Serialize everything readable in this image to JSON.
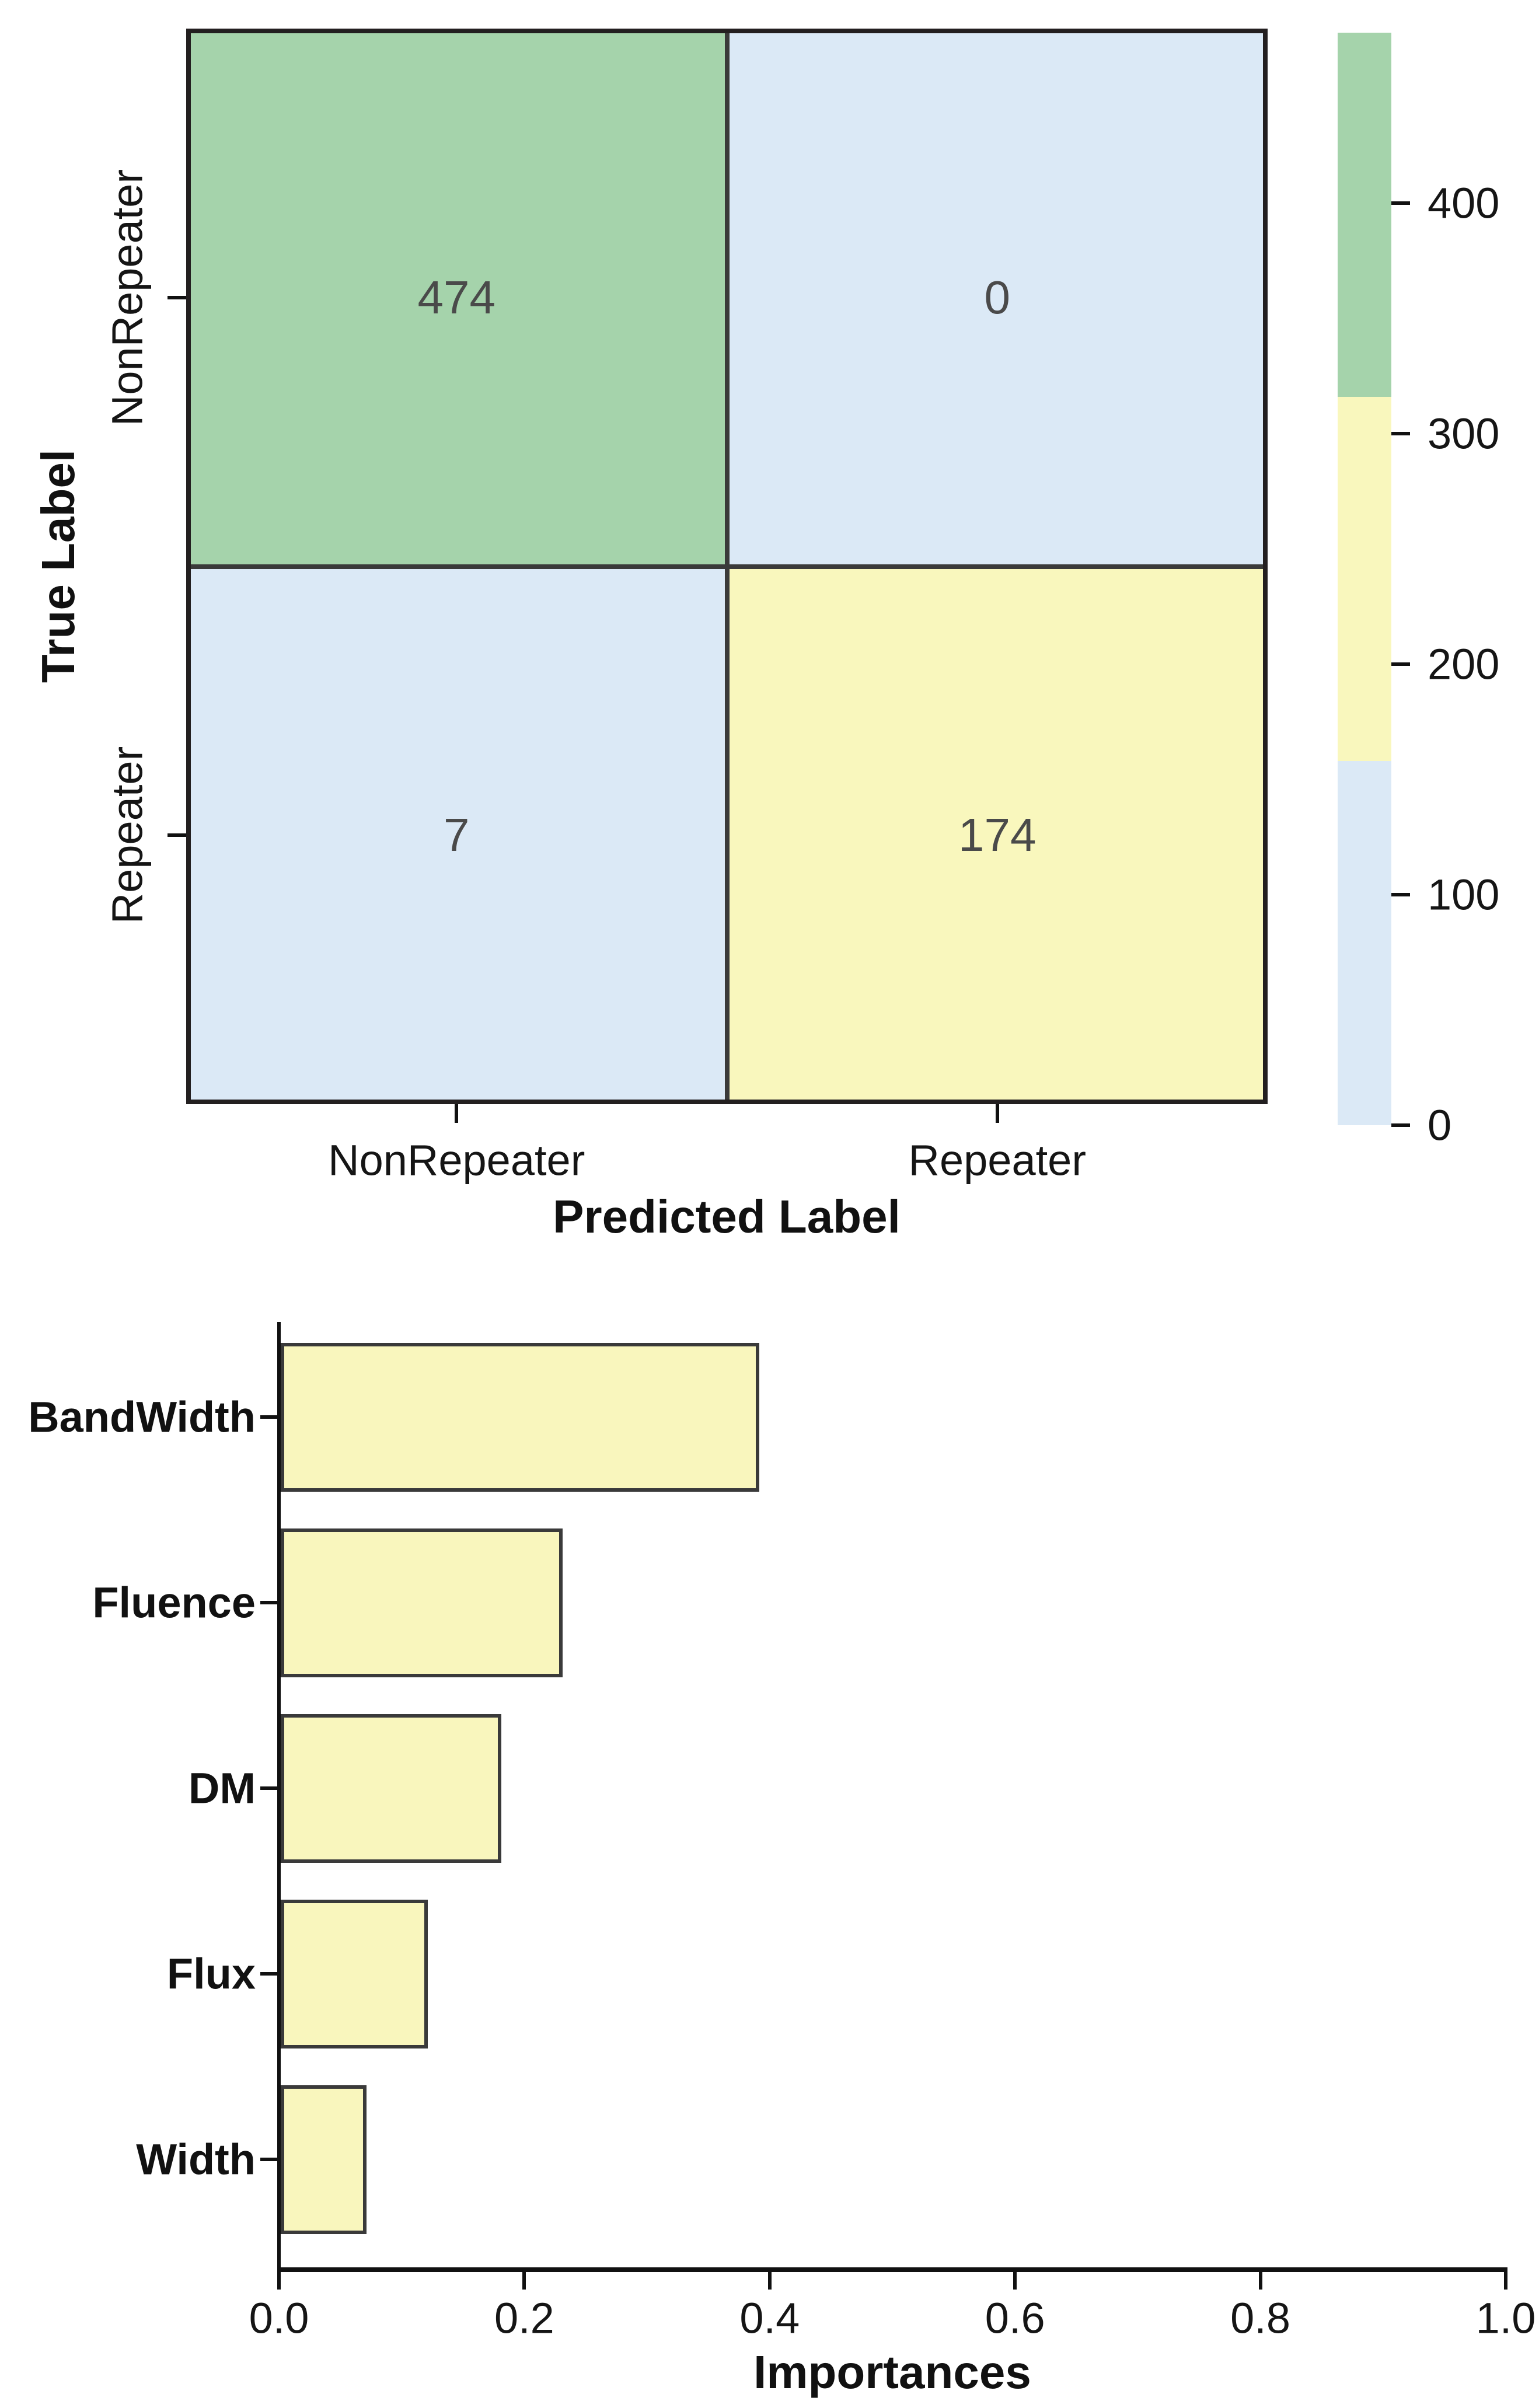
{
  "figure": {
    "background": "#ffffff",
    "text_color": "#111111",
    "annotation_color": "#4a4a4a",
    "grid_line_color": "#3a3a3a",
    "outer_border_color": "#231f20"
  },
  "chart_data": [
    {
      "type": "heatmap",
      "name": "confusion-matrix",
      "xlabel": "Predicted Label",
      "ylabel": "True Label",
      "x_categories": [
        "NonRepeater",
        "Repeater"
      ],
      "y_categories": [
        "NonRepeater",
        "Repeater"
      ],
      "matrix": [
        [
          474,
          0
        ],
        [
          7,
          174
        ]
      ],
      "cell_colors": [
        [
          "#a5d3ab",
          "#dbe9f6"
        ],
        [
          "#dbe9f6",
          "#f9f7bd"
        ]
      ],
      "colorbar": {
        "vmin": 0,
        "vmax": 474,
        "ticks": [
          "400",
          "300",
          "200",
          "100",
          "0"
        ],
        "tick_values": [
          400,
          300,
          200,
          100,
          0
        ],
        "segments": [
          {
            "color": "#a5d3ab",
            "from": 316,
            "to": 474
          },
          {
            "color": "#f9f7bd",
            "from": 158,
            "to": 316
          },
          {
            "color": "#dbe9f6",
            "from": 0,
            "to": 158
          }
        ]
      }
    },
    {
      "type": "bar",
      "name": "feature-importances",
      "orientation": "horizontal",
      "xlabel": "Importances",
      "categories": [
        "BandWidth",
        "Fluence",
        "DM",
        "Flux",
        "Width"
      ],
      "values": [
        0.39,
        0.23,
        0.18,
        0.12,
        0.07
      ],
      "x_ticks": [
        "0.0",
        "0.2",
        "0.4",
        "0.6",
        "0.8",
        "1.0"
      ],
      "x_tick_values": [
        0.0,
        0.2,
        0.4,
        0.6,
        0.8,
        1.0
      ],
      "xlim": [
        0.0,
        1.0
      ],
      "bar_fill": "#f9f6bd",
      "bar_edge": "#3a3a3a",
      "grid": "off",
      "legend": "none"
    }
  ]
}
